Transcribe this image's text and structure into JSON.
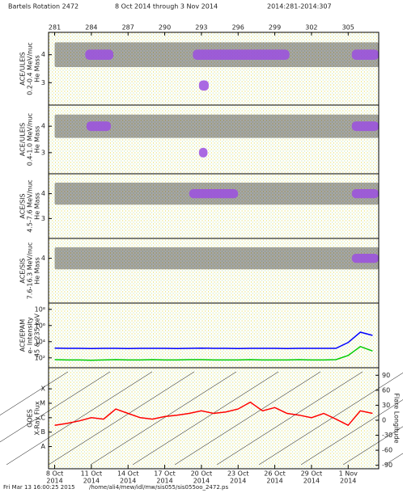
{
  "header": {
    "rotation": "Bartels Rotation 2472",
    "dates": "8 Oct 2014 through 3 Nov 2014",
    "doy": "2014:281-2014:307"
  },
  "time_axis": {
    "xlim": [
      280.5,
      307.5
    ],
    "top_ticks": [
      281,
      284,
      287,
      290,
      293,
      296,
      299,
      302,
      305
    ],
    "bottom_ticks": [
      {
        "value": 281,
        "label": "8 Oct",
        "sublabel": "2014"
      },
      {
        "value": 284,
        "label": "11 Oct",
        "sublabel": "2014"
      },
      {
        "value": 287,
        "label": "14 Oct",
        "sublabel": "2014"
      },
      {
        "value": 290,
        "label": "17 Oct",
        "sublabel": "2014"
      },
      {
        "value": 293,
        "label": "20 Oct",
        "sublabel": "2014"
      },
      {
        "value": 296,
        "label": "23 Oct",
        "sublabel": "2014"
      },
      {
        "value": 299,
        "label": "26 Oct",
        "sublabel": "2014"
      },
      {
        "value": 302,
        "label": "29 Oct",
        "sublabel": "2014"
      },
      {
        "value": 305,
        "label": "1 Nov",
        "sublabel": "2014"
      }
    ]
  },
  "chart_data": [
    {
      "type": "bands",
      "ylabel": [
        "ACE/ULEIS",
        "0.2-0.4 MeV/nuc",
        "He Mass"
      ],
      "ylim": [
        2.2,
        4.8
      ],
      "yticks": [
        3,
        4
      ],
      "bands": [
        {
          "x": [
            281,
            307.5
          ],
          "mass": 4,
          "color": "#000000"
        },
        {
          "x": [
            283.5,
            285.8
          ],
          "mass": 4,
          "color": "#9b4fe0"
        },
        {
          "x": [
            292.3,
            300.2
          ],
          "mass": 4,
          "color": "#9b4fe0"
        },
        {
          "x": [
            305.3,
            307.5
          ],
          "mass": 4,
          "color": "#9b4fe0"
        },
        {
          "x": [
            292.8,
            293.6
          ],
          "mass": 2.9,
          "color": "#9b4fe0"
        }
      ]
    },
    {
      "type": "bands",
      "ylabel": [
        "ACE/ULEIS",
        "0.4-1.0 MeV/nuc",
        "He Mass"
      ],
      "ylim": [
        2.2,
        4.8
      ],
      "yticks": [
        3,
        4
      ],
      "bands": [
        {
          "x": [
            281,
            307.5
          ],
          "mass": 4,
          "color": "#000000"
        },
        {
          "x": [
            283.6,
            285.6
          ],
          "mass": 4,
          "color": "#9b4fe0"
        },
        {
          "x": [
            305.3,
            307.5
          ],
          "mass": 4,
          "color": "#9b4fe0"
        },
        {
          "x": [
            292.8,
            293.5
          ],
          "mass": 3,
          "color": "#9b4fe0"
        }
      ]
    },
    {
      "type": "bands",
      "ylabel": [
        "ACE/SIS",
        "4.5-7.6 MeV/nuc",
        "He Mass"
      ],
      "ylim": [
        2.2,
        4.8
      ],
      "yticks": [
        3,
        4
      ],
      "bands": [
        {
          "x": [
            281,
            307.5
          ],
          "mass": 4,
          "color": "#000000"
        },
        {
          "x": [
            292,
            296
          ],
          "mass": 4,
          "color": "#9b4fe0"
        },
        {
          "x": [
            305.3,
            307.5
          ],
          "mass": 4,
          "color": "#9b4fe0"
        }
      ]
    },
    {
      "type": "bands",
      "ylabel": [
        "ACE/SIS",
        "7.6-16.3 MeV/nuc",
        "He Mass"
      ],
      "ylim": [
        2.2,
        4.8
      ],
      "yticks": [
        4
      ],
      "bands": [
        {
          "x": [
            281,
            307.5
          ],
          "mass": 4,
          "color": "#000000"
        },
        {
          "x": [
            305.3,
            307.5
          ],
          "mass": 4,
          "color": "#9b4fe0"
        }
      ]
    },
    {
      "type": "line",
      "ylabel": [
        "ACE/EPAM",
        "e- Intensity",
        "45 & 235 keV"
      ],
      "log_y": true,
      "ylim": [
        6,
        600000000
      ],
      "yticks": [
        {
          "value": 100,
          "label": "10²"
        },
        {
          "value": 10000,
          "label": "10⁴"
        },
        {
          "value": 1000000,
          "label": "10⁶"
        },
        {
          "value": 100000000,
          "label": "10⁸"
        }
      ],
      "x": [
        281,
        282,
        283,
        284,
        285,
        286,
        287,
        288,
        289,
        290,
        291,
        292,
        293,
        294,
        295,
        296,
        297,
        298,
        299,
        300,
        301,
        302,
        303,
        304,
        305,
        306,
        307
      ],
      "series": [
        {
          "color": "#0000ff",
          "values": [
            1600,
            1500,
            1500,
            1400,
            1500,
            1500,
            1400,
            1500,
            1500,
            1500,
            1400,
            1500,
            1600,
            1500,
            1500,
            1400,
            1500,
            1500,
            1500,
            1400,
            1500,
            1500,
            1500,
            1500,
            8000,
            150000,
            60000
          ]
        },
        {
          "color": "#00cc00",
          "values": [
            60,
            55,
            55,
            50,
            55,
            60,
            55,
            55,
            60,
            55,
            55,
            60,
            60,
            55,
            55,
            55,
            60,
            55,
            55,
            55,
            60,
            55,
            55,
            60,
            200,
            2500,
            700
          ]
        }
      ]
    },
    {
      "type": "line",
      "ylabel": [
        "GOES",
        "X-Ray Flux"
      ],
      "y2label": "Flare Longitude",
      "log_y": true,
      "ylim": [
        2.9e-10,
        0.0029
      ],
      "yticks": [
        {
          "value": 1e-08,
          "label": "A"
        },
        {
          "value": 1e-07,
          "label": "B"
        },
        {
          "value": 1e-06,
          "label": "C"
        },
        {
          "value": 1e-05,
          "label": "M"
        },
        {
          "value": 0.0001,
          "label": "X"
        }
      ],
      "y2lim": [
        -97,
        105
      ],
      "y2ticks": [
        -90,
        -60,
        -30,
        0,
        30,
        60,
        90
      ],
      "x": [
        281,
        282,
        283,
        284,
        285,
        286,
        287,
        288,
        289,
        290,
        291,
        292,
        293,
        294,
        295,
        296,
        297,
        298,
        299,
        300,
        301,
        302,
        303,
        304,
        305,
        306,
        307
      ],
      "series": [
        {
          "color": "#ff0000",
          "values": [
            3e-07,
            4e-07,
            6e-07,
            1e-06,
            8e-07,
            4e-06,
            2e-06,
            1e-06,
            8e-07,
            1.2e-06,
            1.5e-06,
            2e-06,
            3e-06,
            2e-06,
            2.5e-06,
            4e-06,
            1.2e-05,
            3e-06,
            5e-06,
            2e-06,
            1.5e-06,
            1e-06,
            2e-06,
            8e-07,
            3e-07,
            3e-06,
            2e-06
          ]
        }
      ]
    }
  ],
  "footer": {
    "timestamp": "Fri Mar 13 16:00:25 2015",
    "path": "/home/ali4/mew/idl/mw/sis055/sis055oo_2472.ps"
  }
}
